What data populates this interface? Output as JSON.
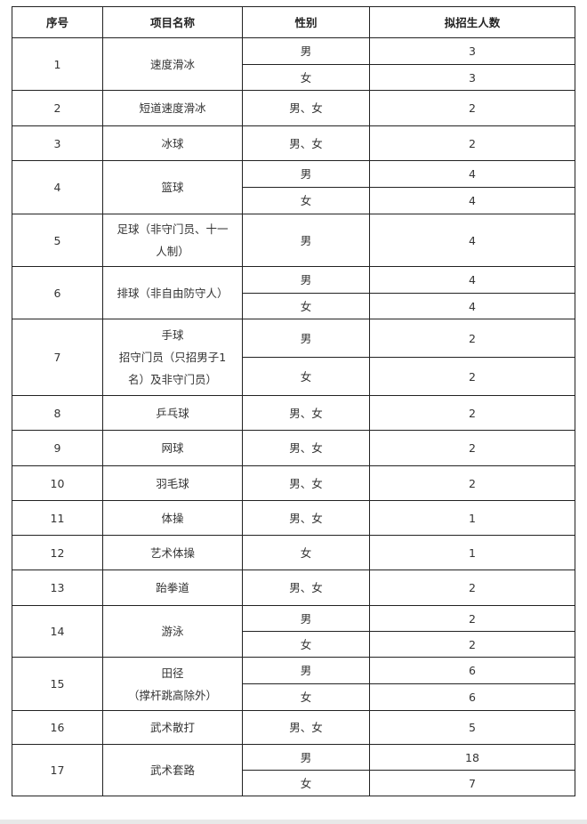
{
  "headers": [
    "序号",
    "项目名称",
    "性别",
    "拟招生人数"
  ],
  "rows": [
    {
      "no": "1",
      "name": [
        "速度滑冰"
      ],
      "entries": [
        {
          "gender": "男",
          "count": "3"
        },
        {
          "gender": "女",
          "count": "3"
        }
      ]
    },
    {
      "no": "2",
      "name": [
        "短道速度滑冰"
      ],
      "entries": [
        {
          "gender": "男、女",
          "count": "2"
        }
      ]
    },
    {
      "no": "3",
      "name": [
        "冰球"
      ],
      "entries": [
        {
          "gender": "男、女",
          "count": "2"
        }
      ]
    },
    {
      "no": "4",
      "name": [
        "篮球"
      ],
      "entries": [
        {
          "gender": "男",
          "count": "4"
        },
        {
          "gender": "女",
          "count": "4"
        }
      ]
    },
    {
      "no": "5",
      "name": [
        "足球（非守门员、十一",
        "人制）"
      ],
      "entries": [
        {
          "gender": "男",
          "count": "4"
        }
      ]
    },
    {
      "no": "6",
      "name": [
        "排球（非自由防守人）"
      ],
      "entries": [
        {
          "gender": "男",
          "count": "4"
        },
        {
          "gender": "女",
          "count": "4"
        }
      ]
    },
    {
      "no": "7",
      "name": [
        "手球",
        "招守门员（只招男子1",
        "名）及非守门员）"
      ],
      "entries": [
        {
          "gender": "男",
          "count": "2"
        },
        {
          "gender": "女",
          "count": "2"
        }
      ]
    },
    {
      "no": "8",
      "name": [
        "乒乓球"
      ],
      "entries": [
        {
          "gender": "男、女",
          "count": "2"
        }
      ]
    },
    {
      "no": "9",
      "name": [
        "网球"
      ],
      "entries": [
        {
          "gender": "男、女",
          "count": "2"
        }
      ]
    },
    {
      "no": "10",
      "name": [
        "羽毛球"
      ],
      "entries": [
        {
          "gender": "男、女",
          "count": "2"
        }
      ]
    },
    {
      "no": "11",
      "name": [
        "体操"
      ],
      "entries": [
        {
          "gender": "男、女",
          "count": "1"
        }
      ]
    },
    {
      "no": "12",
      "name": [
        "艺术体操"
      ],
      "entries": [
        {
          "gender": "女",
          "count": "1"
        }
      ]
    },
    {
      "no": "13",
      "name": [
        "跆拳道"
      ],
      "entries": [
        {
          "gender": "男、女",
          "count": "2"
        }
      ]
    },
    {
      "no": "14",
      "name": [
        "游泳"
      ],
      "entries": [
        {
          "gender": "男",
          "count": "2"
        },
        {
          "gender": "女",
          "count": "2"
        }
      ]
    },
    {
      "no": "15",
      "name": [
        "田径",
        "（撑杆跳高除外）"
      ],
      "entries": [
        {
          "gender": "男",
          "count": "6"
        },
        {
          "gender": "女",
          "count": "6"
        }
      ]
    },
    {
      "no": "16",
      "name": [
        "武术散打"
      ],
      "entries": [
        {
          "gender": "男、女",
          "count": "5"
        }
      ]
    },
    {
      "no": "17",
      "name": [
        "武术套路"
      ],
      "entries": [
        {
          "gender": "男",
          "count": "18"
        },
        {
          "gender": "女",
          "count": "7"
        }
      ]
    }
  ]
}
